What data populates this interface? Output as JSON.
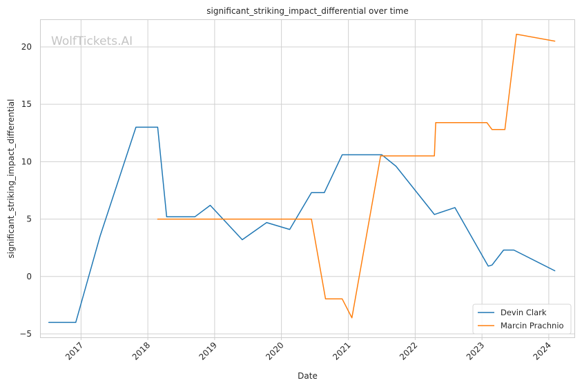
{
  "chart_data": {
    "type": "line",
    "title": "significant_striking_impact_differential over time",
    "xlabel": "Date",
    "ylabel": "significant_striking_impact_differential",
    "watermark": "WolfTickets.AI",
    "xlim": [
      "2016-05-22",
      "2024-05-20"
    ],
    "ylim": [
      -5.3,
      22.4
    ],
    "xticks": [
      {
        "label": "2017",
        "date": "2017-01-01"
      },
      {
        "label": "2018",
        "date": "2018-01-01"
      },
      {
        "label": "2019",
        "date": "2019-01-01"
      },
      {
        "label": "2020",
        "date": "2020-01-01"
      },
      {
        "label": "2021",
        "date": "2021-01-01"
      },
      {
        "label": "2022",
        "date": "2022-01-01"
      },
      {
        "label": "2023",
        "date": "2023-01-01"
      },
      {
        "label": "2024",
        "date": "2024-01-01"
      }
    ],
    "yticks": [
      {
        "label": "−5",
        "value": -5
      },
      {
        "label": "0",
        "value": 0
      },
      {
        "label": "5",
        "value": 5
      },
      {
        "label": "10",
        "value": 10
      },
      {
        "label": "15",
        "value": 15
      },
      {
        "label": "20",
        "value": 20
      }
    ],
    "grid": true,
    "legend": "lower-right",
    "series": [
      {
        "name": "Devin Clark",
        "color": "#1f77b4",
        "points": [
          {
            "x": "2016-07-09",
            "y": -4.0
          },
          {
            "x": "2016-12-03",
            "y": -4.0
          },
          {
            "x": "2017-04-15",
            "y": 3.5
          },
          {
            "x": "2017-10-28",
            "y": 13.0
          },
          {
            "x": "2018-02-24",
            "y": 13.0
          },
          {
            "x": "2018-04-14",
            "y": 5.2
          },
          {
            "x": "2018-09-15",
            "y": 5.2
          },
          {
            "x": "2018-12-08",
            "y": 6.2
          },
          {
            "x": "2019-06-01",
            "y": 3.2
          },
          {
            "x": "2019-10-12",
            "y": 4.7
          },
          {
            "x": "2020-02-15",
            "y": 4.1
          },
          {
            "x": "2020-06-13",
            "y": 7.3
          },
          {
            "x": "2020-08-22",
            "y": 7.3
          },
          {
            "x": "2020-11-28",
            "y": 10.6
          },
          {
            "x": "2021-07-03",
            "y": 10.6
          },
          {
            "x": "2021-09-18",
            "y": 9.6
          },
          {
            "x": "2022-04-16",
            "y": 5.4
          },
          {
            "x": "2022-08-06",
            "y": 6.0
          },
          {
            "x": "2023-02-04",
            "y": 0.9
          },
          {
            "x": "2023-02-25",
            "y": 1.0
          },
          {
            "x": "2023-04-29",
            "y": 2.3
          },
          {
            "x": "2023-06-24",
            "y": 2.3
          },
          {
            "x": "2024-02-03",
            "y": 0.5
          }
        ]
      },
      {
        "name": "Marcin Prachnio",
        "color": "#ff7f0e",
        "points": [
          {
            "x": "2018-02-24",
            "y": 5.0
          },
          {
            "x": "2020-06-13",
            "y": 5.0
          },
          {
            "x": "2020-08-29",
            "y": -1.95
          },
          {
            "x": "2020-11-28",
            "y": -1.95
          },
          {
            "x": "2021-01-20",
            "y": -3.6
          },
          {
            "x": "2021-06-26",
            "y": 10.5
          },
          {
            "x": "2022-04-16",
            "y": 10.5
          },
          {
            "x": "2022-04-23",
            "y": 13.4
          },
          {
            "x": "2023-01-28",
            "y": 13.4
          },
          {
            "x": "2023-02-25",
            "y": 12.8
          },
          {
            "x": "2023-05-06",
            "y": 12.8
          },
          {
            "x": "2023-07-08",
            "y": 21.1
          },
          {
            "x": "2024-02-03",
            "y": 20.5
          }
        ]
      }
    ]
  }
}
